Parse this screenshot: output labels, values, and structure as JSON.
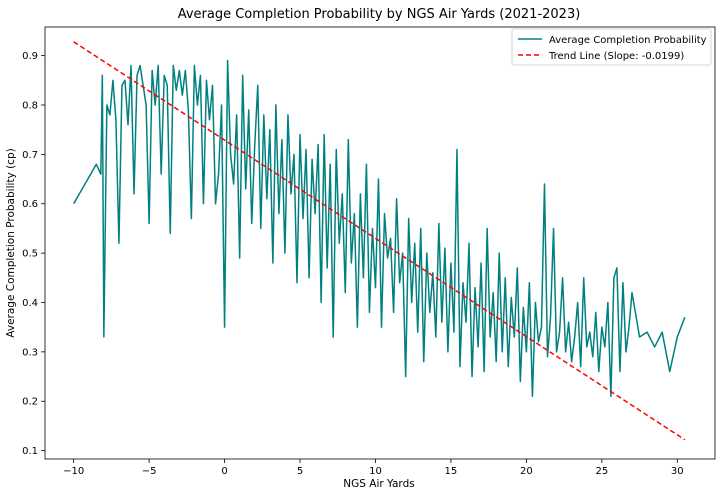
{
  "chart_data": {
    "type": "line",
    "title": "Average Completion Probability by NGS Air Yards (2021-2023)",
    "xlabel": "NGS Air Yards",
    "ylabel": "Average Completion Probability (cp)",
    "xlim": [
      -11.9,
      32.5
    ],
    "ylim": [
      0.083,
      0.958
    ],
    "x_ticks": [
      -10,
      -5,
      0,
      5,
      10,
      15,
      20,
      25,
      30
    ],
    "y_ticks": [
      0.1,
      0.2,
      0.3,
      0.4,
      0.5,
      0.6,
      0.7,
      0.8,
      0.9
    ],
    "x_tick_labels": [
      "−10",
      "−5",
      "0",
      "5",
      "10",
      "15",
      "20",
      "25",
      "30"
    ],
    "y_tick_labels": [
      "0.1",
      "0.2",
      "0.3",
      "0.4",
      "0.5",
      "0.6",
      "0.7",
      "0.8",
      "0.9"
    ],
    "grid": false,
    "legend_position": "top-right",
    "series": [
      {
        "name": "Average Completion Probability",
        "color": "#008080",
        "style": "solid",
        "x": [
          -10.0,
          -8.5,
          -8.2,
          -8.1,
          -8.0,
          -7.8,
          -7.6,
          -7.4,
          -7.2,
          -7.0,
          -6.8,
          -6.6,
          -6.4,
          -6.2,
          -6.0,
          -5.8,
          -5.6,
          -5.4,
          -5.2,
          -5.0,
          -4.8,
          -4.6,
          -4.4,
          -4.2,
          -4.0,
          -3.8,
          -3.6,
          -3.4,
          -3.2,
          -3.0,
          -2.8,
          -2.6,
          -2.4,
          -2.2,
          -2.0,
          -1.8,
          -1.6,
          -1.4,
          -1.2,
          -1.0,
          -0.8,
          -0.6,
          -0.4,
          -0.2,
          0.0,
          0.2,
          0.4,
          0.6,
          0.8,
          1.0,
          1.2,
          1.4,
          1.6,
          1.8,
          2.0,
          2.2,
          2.4,
          2.6,
          2.8,
          3.0,
          3.2,
          3.4,
          3.6,
          3.8,
          4.0,
          4.2,
          4.4,
          4.6,
          4.8,
          5.0,
          5.2,
          5.4,
          5.6,
          5.8,
          6.0,
          6.2,
          6.4,
          6.6,
          6.8,
          7.0,
          7.2,
          7.4,
          7.6,
          7.8,
          8.0,
          8.2,
          8.4,
          8.6,
          8.8,
          9.0,
          9.2,
          9.4,
          9.6,
          9.8,
          10.0,
          10.2,
          10.4,
          10.6,
          10.8,
          11.0,
          11.2,
          11.4,
          11.6,
          11.8,
          12.0,
          12.2,
          12.4,
          12.6,
          12.8,
          13.0,
          13.2,
          13.4,
          13.6,
          13.8,
          14.0,
          14.2,
          14.4,
          14.6,
          14.8,
          15.0,
          15.2,
          15.4,
          15.6,
          15.8,
          16.0,
          16.2,
          16.4,
          16.6,
          16.8,
          17.0,
          17.2,
          17.4,
          17.6,
          17.8,
          18.0,
          18.2,
          18.4,
          18.6,
          18.8,
          19.0,
          19.2,
          19.4,
          19.6,
          19.8,
          20.0,
          20.2,
          20.4,
          20.6,
          20.8,
          21.0,
          21.2,
          21.4,
          21.6,
          21.8,
          22.0,
          22.2,
          22.4,
          22.6,
          22.8,
          23.0,
          23.2,
          23.4,
          23.6,
          23.8,
          24.0,
          24.2,
          24.4,
          24.6,
          24.8,
          25.0,
          25.2,
          25.4,
          25.6,
          25.8,
          26.0,
          26.2,
          26.4,
          26.6,
          26.8,
          27.0,
          27.5,
          28.0,
          28.5,
          29.0,
          29.5,
          30.0,
          30.5
        ],
        "y": [
          0.6,
          0.68,
          0.66,
          0.86,
          0.33,
          0.8,
          0.78,
          0.85,
          0.77,
          0.52,
          0.84,
          0.85,
          0.76,
          0.88,
          0.62,
          0.86,
          0.88,
          0.84,
          0.8,
          0.56,
          0.87,
          0.8,
          0.88,
          0.66,
          0.86,
          0.84,
          0.54,
          0.88,
          0.83,
          0.87,
          0.82,
          0.87,
          0.79,
          0.57,
          0.88,
          0.8,
          0.86,
          0.6,
          0.85,
          0.77,
          0.84,
          0.6,
          0.66,
          0.8,
          0.35,
          0.89,
          0.7,
          0.64,
          0.78,
          0.49,
          0.86,
          0.63,
          0.79,
          0.56,
          0.72,
          0.84,
          0.55,
          0.78,
          0.61,
          0.75,
          0.48,
          0.8,
          0.58,
          0.73,
          0.5,
          0.78,
          0.62,
          0.7,
          0.44,
          0.74,
          0.57,
          0.71,
          0.45,
          0.69,
          0.58,
          0.72,
          0.4,
          0.74,
          0.47,
          0.68,
          0.33,
          0.71,
          0.52,
          0.62,
          0.42,
          0.73,
          0.48,
          0.58,
          0.35,
          0.62,
          0.45,
          0.68,
          0.38,
          0.55,
          0.43,
          0.65,
          0.35,
          0.58,
          0.49,
          0.53,
          0.38,
          0.61,
          0.44,
          0.5,
          0.25,
          0.57,
          0.4,
          0.52,
          0.34,
          0.55,
          0.28,
          0.5,
          0.38,
          0.46,
          0.33,
          0.56,
          0.36,
          0.51,
          0.3,
          0.48,
          0.34,
          0.71,
          0.27,
          0.44,
          0.36,
          0.52,
          0.25,
          0.43,
          0.31,
          0.48,
          0.26,
          0.55,
          0.33,
          0.42,
          0.28,
          0.5,
          0.3,
          0.45,
          0.27,
          0.41,
          0.33,
          0.47,
          0.24,
          0.39,
          0.3,
          0.44,
          0.21,
          0.4,
          0.32,
          0.35,
          0.64,
          0.29,
          0.37,
          0.55,
          0.3,
          0.34,
          0.45,
          0.3,
          0.36,
          0.28,
          0.33,
          0.4,
          0.27,
          0.45,
          0.31,
          0.34,
          0.29,
          0.38,
          0.26,
          0.35,
          0.31,
          0.4,
          0.21,
          0.45,
          0.47,
          0.26,
          0.44,
          0.3,
          0.35,
          0.42,
          0.33,
          0.34,
          0.31,
          0.34,
          0.26,
          0.33,
          0.37
        ]
      },
      {
        "name": "Trend Line (Slope: -0.0199)",
        "color": "#ff0000",
        "style": "dashed",
        "x": [
          -10.0,
          30.5
        ],
        "y": [
          0.928,
          0.122
        ]
      }
    ]
  }
}
